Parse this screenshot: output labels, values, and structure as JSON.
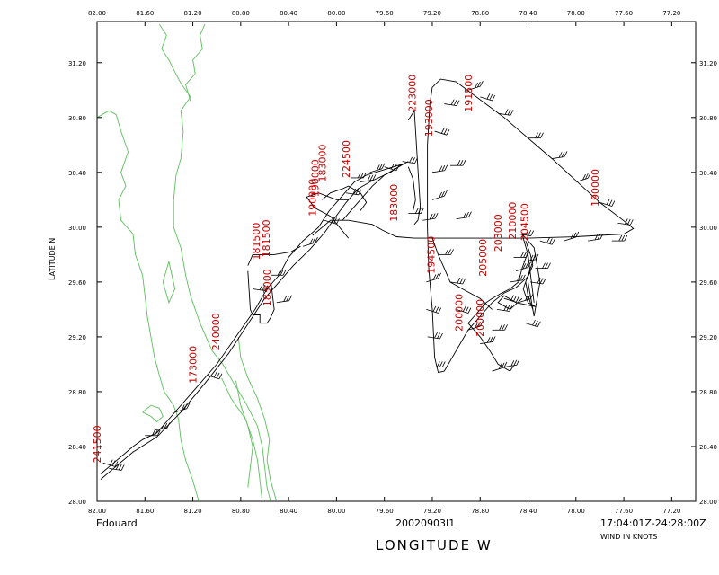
{
  "storm_name": "Edouard",
  "date_id": "20020903I1",
  "time_range": "17:04:01Z-24:28:00Z",
  "wind_units": "WIND IN KNOTS",
  "x_axis_title": "LONGITUDE   W",
  "y_axis_title": "LATITUDE   N",
  "colors": {
    "coast": "#5cbf5c",
    "track": "#000000",
    "labels": "#cc0000"
  },
  "x_ticks": [
    "82.00",
    "81.60",
    "81.20",
    "80.80",
    "80.40",
    "80.00",
    "79.60",
    "79.20",
    "78.80",
    "78.40",
    "78.00",
    "77.60",
    "77.20"
  ],
  "y_ticks": [
    "28.00",
    "28.40",
    "28.80",
    "29.20",
    "29.60",
    "30.00",
    "30.40",
    "30.80",
    "31.20"
  ],
  "time_labels": [
    {
      "text": "241500",
      "lon": 81.97,
      "lat": 28.28
    },
    {
      "text": "173000",
      "lon": 81.17,
      "lat": 28.86
    },
    {
      "text": "240000",
      "lon": 80.98,
      "lat": 29.1
    },
    {
      "text": "181500",
      "lon": 80.64,
      "lat": 29.76
    },
    {
      "text": "181500",
      "lon": 80.56,
      "lat": 29.78
    },
    {
      "text": "183000",
      "lon": 80.55,
      "lat": 29.42
    },
    {
      "text": "190000",
      "lon": 80.15,
      "lat": 30.22
    },
    {
      "text": "190000",
      "lon": 80.17,
      "lat": 30.08
    },
    {
      "text": "183000",
      "lon": 80.09,
      "lat": 30.33
    },
    {
      "text": "224500",
      "lon": 79.89,
      "lat": 30.36
    },
    {
      "text": "183000",
      "lon": 79.49,
      "lat": 30.04
    },
    {
      "text": "223000",
      "lon": 79.34,
      "lat": 30.84
    },
    {
      "text": "193000",
      "lon": 79.2,
      "lat": 30.66
    },
    {
      "text": "194500",
      "lon": 79.18,
      "lat": 29.66
    },
    {
      "text": "191500",
      "lon": 78.87,
      "lat": 30.84
    },
    {
      "text": "210000",
      "lon": 78.5,
      "lat": 29.91
    },
    {
      "text": "204500",
      "lon": 78.4,
      "lat": 29.9
    },
    {
      "text": "203000",
      "lon": 78.62,
      "lat": 29.82
    },
    {
      "text": "200000",
      "lon": 78.95,
      "lat": 29.24
    },
    {
      "text": "200000",
      "lon": 78.77,
      "lat": 29.2
    },
    {
      "text": "190000",
      "lon": 77.81,
      "lat": 30.15
    },
    {
      "text": "205000",
      "lon": 78.75,
      "lat": 29.64
    }
  ],
  "track_segments": [
    [
      [
        81.97,
        28.2
      ],
      [
        81.7,
        28.4
      ],
      [
        81.62,
        28.45
      ],
      [
        81.5,
        28.5
      ],
      [
        81.4,
        28.6
      ],
      [
        81.2,
        28.8
      ],
      [
        81.0,
        29.0
      ],
      [
        80.8,
        29.25
      ],
      [
        80.68,
        29.4
      ],
      [
        80.58,
        29.55
      ],
      [
        80.48,
        29.65
      ],
      [
        80.4,
        29.78
      ],
      [
        80.28,
        29.9
      ],
      [
        80.15,
        30.0
      ],
      [
        80.06,
        30.12
      ],
      [
        79.98,
        30.2
      ],
      [
        79.9,
        30.28
      ],
      [
        79.85,
        30.33
      ],
      [
        79.75,
        30.38
      ],
      [
        79.6,
        30.42
      ],
      [
        79.45,
        30.46
      ]
    ],
    [
      [
        81.97,
        28.16
      ],
      [
        81.7,
        28.36
      ],
      [
        81.5,
        28.47
      ],
      [
        81.3,
        28.65
      ],
      [
        81.1,
        28.86
      ],
      [
        80.9,
        29.08
      ],
      [
        80.72,
        29.32
      ],
      [
        80.6,
        29.48
      ],
      [
        80.48,
        29.6
      ],
      [
        80.36,
        29.72
      ],
      [
        80.22,
        29.84
      ],
      [
        80.1,
        29.96
      ],
      [
        80.02,
        30.06
      ],
      [
        79.92,
        30.18
      ],
      [
        79.82,
        30.28
      ],
      [
        79.7,
        30.34
      ],
      [
        79.55,
        30.4
      ],
      [
        79.45,
        30.46
      ]
    ],
    [
      [
        80.74,
        29.68
      ],
      [
        80.72,
        29.4
      ],
      [
        80.7,
        29.36
      ],
      [
        80.64,
        29.36
      ],
      [
        80.64,
        29.3
      ],
      [
        80.58,
        29.3
      ],
      [
        80.55,
        29.34
      ],
      [
        80.52,
        29.4
      ],
      [
        80.55,
        29.62
      ]
    ],
    [
      [
        80.74,
        29.72
      ],
      [
        80.7,
        29.8
      ],
      [
        80.52,
        29.8
      ],
      [
        80.38,
        29.82
      ],
      [
        80.3,
        29.86
      ]
    ],
    [
      [
        80.2,
        29.94
      ],
      [
        80.05,
        30.05
      ],
      [
        79.9,
        30.05
      ],
      [
        79.7,
        30.02
      ],
      [
        79.62,
        29.98
      ],
      [
        79.5,
        29.93
      ],
      [
        79.35,
        29.92
      ],
      [
        79.25,
        29.92
      ],
      [
        79.1,
        29.92
      ],
      [
        78.9,
        29.92
      ],
      [
        78.6,
        29.92
      ],
      [
        78.4,
        29.92
      ],
      [
        78.0,
        29.93
      ],
      [
        77.6,
        29.95
      ],
      [
        77.52,
        29.99
      ],
      [
        77.56,
        30.02
      ],
      [
        77.8,
        30.18
      ],
      [
        78.2,
        30.5
      ],
      [
        78.6,
        30.8
      ],
      [
        79.0,
        31.06
      ],
      [
        79.13,
        31.08
      ],
      [
        79.2,
        31.02
      ],
      [
        79.22,
        30.9
      ],
      [
        79.24,
        30.6
      ],
      [
        79.24,
        30.3
      ],
      [
        79.24,
        30.0
      ],
      [
        79.23,
        29.7
      ],
      [
        79.2,
        29.4
      ],
      [
        79.18,
        29.05
      ],
      [
        79.15,
        28.94
      ],
      [
        79.1,
        28.95
      ]
    ],
    [
      [
        79.1,
        28.95
      ],
      [
        79.0,
        29.1
      ],
      [
        78.9,
        29.25
      ],
      [
        78.8,
        29.35
      ],
      [
        78.7,
        29.45
      ],
      [
        78.6,
        29.52
      ],
      [
        78.5,
        29.56
      ],
      [
        78.45,
        29.6
      ],
      [
        78.4,
        29.64
      ],
      [
        78.36,
        29.72
      ],
      [
        78.38,
        29.8
      ],
      [
        78.42,
        29.9
      ],
      [
        78.4,
        29.85
      ]
    ],
    [
      [
        78.36,
        29.4
      ],
      [
        78.4,
        29.5
      ],
      [
        78.42,
        29.6
      ],
      [
        78.38,
        29.7
      ],
      [
        78.34,
        29.8
      ],
      [
        78.38,
        29.7
      ],
      [
        78.44,
        29.55
      ],
      [
        78.4,
        29.45
      ],
      [
        78.34,
        29.42
      ],
      [
        78.5,
        29.45
      ],
      [
        78.6,
        29.5
      ],
      [
        78.65,
        29.45
      ],
      [
        78.55,
        29.4
      ],
      [
        78.45,
        29.48
      ]
    ],
    [
      [
        78.4,
        29.82
      ],
      [
        78.45,
        29.7
      ],
      [
        78.48,
        29.6
      ],
      [
        78.55,
        29.55
      ],
      [
        78.62,
        29.52
      ],
      [
        78.7,
        29.48
      ],
      [
        78.75,
        29.45
      ],
      [
        78.8,
        29.4
      ],
      [
        78.85,
        29.35
      ],
      [
        78.9,
        29.3
      ],
      [
        78.8,
        29.2
      ],
      [
        78.72,
        29.1
      ],
      [
        78.65,
        29.0
      ],
      [
        78.55,
        28.95
      ],
      [
        78.52,
        28.99
      ]
    ],
    [
      [
        79.2,
        29.92
      ],
      [
        79.15,
        29.8
      ],
      [
        79.1,
        29.7
      ],
      [
        79.05,
        29.6
      ],
      [
        78.95,
        29.55
      ],
      [
        78.8,
        29.48
      ],
      [
        78.7,
        29.4
      ]
    ],
    [
      [
        79.4,
        30.48
      ],
      [
        79.6,
        30.38
      ],
      [
        79.7,
        30.3
      ],
      [
        79.8,
        30.2
      ],
      [
        79.9,
        30.1
      ],
      [
        79.95,
        30.05
      ]
    ],
    [
      [
        79.36,
        30.12
      ],
      [
        79.34,
        30.2
      ],
      [
        79.36,
        30.35
      ],
      [
        79.4,
        30.44
      ]
    ],
    [
      [
        79.35,
        30.02
      ],
      [
        79.32,
        30.05
      ],
      [
        79.3,
        30.15
      ],
      [
        79.35,
        30.85
      ],
      [
        79.4,
        30.78
      ]
    ],
    [
      [
        80.12,
        30.2
      ],
      [
        80.05,
        30.25
      ],
      [
        79.95,
        30.28
      ],
      [
        79.9,
        30.3
      ],
      [
        79.8,
        30.25
      ],
      [
        79.75,
        30.18
      ],
      [
        79.8,
        30.12
      ]
    ],
    [
      [
        79.9,
        29.92
      ],
      [
        80.05,
        30.08
      ],
      [
        80.18,
        30.14
      ],
      [
        80.25,
        30.22
      ],
      [
        80.15,
        30.25
      ],
      [
        80.0,
        30.2
      ],
      [
        79.9,
        30.2
      ]
    ],
    [
      [
        78.35,
        29.45
      ],
      [
        78.4,
        29.8
      ],
      [
        78.45,
        29.95
      ],
      [
        78.35,
        29.85
      ],
      [
        78.3,
        29.6
      ],
      [
        78.35,
        29.35
      ],
      [
        78.4,
        29.6
      ]
    ]
  ],
  "wind_barbs": [
    [
      81.95,
      28.28
    ],
    [
      81.9,
      28.24
    ],
    [
      81.6,
      28.48
    ],
    [
      81.52,
      28.52
    ],
    [
      81.35,
      28.65
    ],
    [
      81.08,
      28.92
    ],
    [
      80.7,
      29.55
    ],
    [
      80.55,
      29.65
    ],
    [
      80.5,
      29.45
    ],
    [
      80.28,
      29.86
    ],
    [
      80.1,
      30.05
    ],
    [
      79.92,
      30.25
    ],
    [
      79.88,
      30.36
    ],
    [
      79.8,
      30.33
    ],
    [
      79.72,
      30.4
    ],
    [
      79.6,
      30.44
    ],
    [
      79.45,
      30.48
    ],
    [
      79.4,
      30.1
    ],
    [
      79.28,
      30.05
    ],
    [
      79.25,
      29.6
    ],
    [
      79.25,
      29.4
    ],
    [
      79.24,
      29.2
    ],
    [
      79.22,
      28.98
    ],
    [
      79.2,
      30.4
    ],
    [
      79.2,
      30.2
    ],
    [
      79.18,
      30.7
    ],
    [
      79.1,
      30.9
    ],
    [
      79.05,
      30.45
    ],
    [
      79.0,
      30.06
    ],
    [
      78.9,
      31.0
    ],
    [
      78.8,
      30.95
    ],
    [
      78.65,
      30.83
    ],
    [
      78.4,
      30.65
    ],
    [
      78.2,
      30.5
    ],
    [
      78.0,
      30.33
    ],
    [
      77.8,
      30.18
    ],
    [
      77.65,
      30.03
    ],
    [
      77.7,
      29.9
    ],
    [
      77.9,
      29.9
    ],
    [
      78.1,
      29.9
    ],
    [
      78.3,
      29.9
    ],
    [
      78.48,
      29.95
    ],
    [
      78.52,
      29.78
    ],
    [
      78.55,
      29.6
    ],
    [
      78.48,
      29.45
    ],
    [
      78.42,
      29.3
    ],
    [
      78.38,
      29.6
    ],
    [
      78.34,
      29.7
    ],
    [
      78.44,
      29.75
    ],
    [
      78.5,
      29.68
    ],
    [
      78.6,
      29.48
    ],
    [
      78.66,
      29.4
    ],
    [
      78.7,
      29.25
    ],
    [
      78.8,
      29.15
    ],
    [
      78.9,
      29.25
    ],
    [
      79.0,
      29.4
    ],
    [
      79.05,
      29.6
    ],
    [
      79.15,
      29.8
    ],
    [
      78.6,
      28.98
    ],
    [
      78.7,
      28.95
    ]
  ],
  "coast_lines": [
    [
      [
        81.48,
        31.48
      ],
      [
        81.42,
        31.4
      ],
      [
        81.46,
        31.3
      ],
      [
        81.4,
        31.22
      ],
      [
        81.36,
        31.15
      ],
      [
        81.3,
        31.05
      ],
      [
        81.22,
        30.95
      ],
      [
        81.3,
        30.85
      ],
      [
        81.28,
        30.7
      ],
      [
        81.3,
        30.5
      ],
      [
        81.34,
        30.38
      ],
      [
        81.36,
        30.2
      ],
      [
        81.36,
        30.0
      ],
      [
        81.3,
        29.85
      ],
      [
        81.26,
        29.65
      ],
      [
        81.22,
        29.5
      ],
      [
        81.14,
        29.3
      ],
      [
        81.04,
        29.1
      ],
      [
        80.95,
        29.0
      ],
      [
        80.85,
        28.85
      ],
      [
        80.76,
        28.72
      ],
      [
        80.66,
        28.55
      ],
      [
        80.62,
        28.4
      ],
      [
        80.6,
        28.25
      ],
      [
        80.58,
        28.1
      ],
      [
        80.55,
        28.0
      ]
    ],
    [
      [
        81.1,
        31.48
      ],
      [
        81.14,
        31.4
      ],
      [
        81.12,
        31.3
      ],
      [
        81.2,
        31.22
      ],
      [
        81.18,
        31.12
      ],
      [
        81.26,
        31.04
      ],
      [
        81.22,
        30.92
      ]
    ],
    [
      [
        80.96,
        28.9
      ],
      [
        80.88,
        28.75
      ],
      [
        80.76,
        28.6
      ],
      [
        80.7,
        28.45
      ],
      [
        80.66,
        28.3
      ],
      [
        80.64,
        28.15
      ],
      [
        80.62,
        28.0
      ]
    ],
    [
      [
        80.84,
        28.88
      ],
      [
        80.8,
        28.7
      ],
      [
        80.74,
        28.55
      ],
      [
        80.7,
        28.4
      ],
      [
        80.72,
        28.25
      ],
      [
        80.74,
        28.1
      ]
    ],
    [
      [
        80.82,
        29.2
      ],
      [
        80.8,
        29.05
      ],
      [
        80.74,
        28.9
      ],
      [
        80.66,
        28.75
      ],
      [
        80.6,
        28.6
      ],
      [
        80.56,
        28.45
      ],
      [
        80.58,
        28.3
      ],
      [
        80.55,
        28.15
      ],
      [
        80.5,
        28.0
      ]
    ],
    [
      [
        82.0,
        30.8
      ],
      [
        81.9,
        30.85
      ],
      [
        81.84,
        30.82
      ],
      [
        81.8,
        30.7
      ],
      [
        81.74,
        30.55
      ],
      [
        81.8,
        30.4
      ],
      [
        81.76,
        30.3
      ],
      [
        81.82,
        30.2
      ],
      [
        81.8,
        30.05
      ],
      [
        81.7,
        29.95
      ],
      [
        81.68,
        29.8
      ],
      [
        81.62,
        29.65
      ],
      [
        81.6,
        29.5
      ],
      [
        81.58,
        29.35
      ],
      [
        81.55,
        29.2
      ],
      [
        81.52,
        29.05
      ],
      [
        81.48,
        28.92
      ],
      [
        81.44,
        28.8
      ],
      [
        81.36,
        28.7
      ],
      [
        81.32,
        28.6
      ],
      [
        81.3,
        28.45
      ],
      [
        81.26,
        28.3
      ],
      [
        81.2,
        28.15
      ],
      [
        81.15,
        28.0
      ]
    ],
    [
      [
        81.62,
        28.65
      ],
      [
        81.55,
        28.62
      ],
      [
        81.5,
        28.58
      ],
      [
        81.45,
        28.62
      ],
      [
        81.48,
        28.68
      ],
      [
        81.55,
        28.7
      ],
      [
        81.62,
        28.65
      ]
    ],
    [
      [
        81.4,
        29.75
      ],
      [
        81.45,
        29.6
      ],
      [
        81.4,
        29.45
      ],
      [
        81.35,
        29.55
      ],
      [
        81.4,
        29.75
      ]
    ]
  ]
}
